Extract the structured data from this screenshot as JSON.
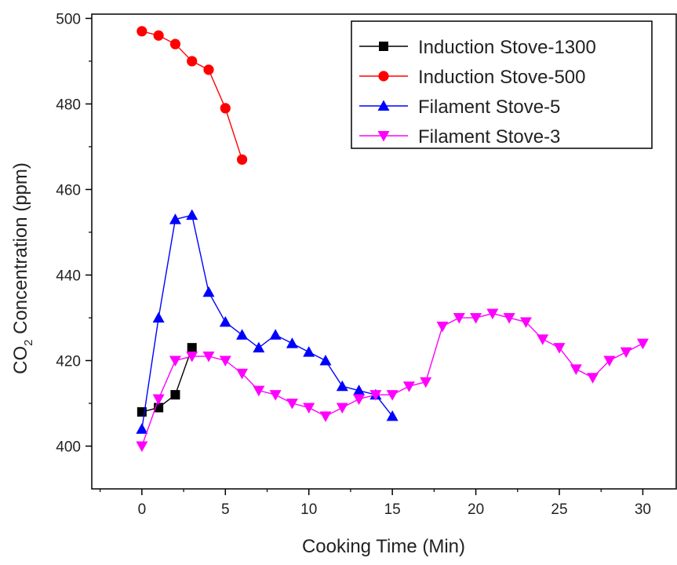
{
  "chart_data": {
    "type": "line",
    "xlabel": "Cooking Time (Min)",
    "ylabel_main": "CO",
    "ylabel_sub": "2",
    "ylabel_rest": " Concentration (ppm)",
    "xlim": [
      -3,
      32
    ],
    "ylim": [
      390,
      501
    ],
    "xticks": [
      0,
      5,
      10,
      15,
      20,
      25,
      30
    ],
    "yticks": [
      400,
      420,
      440,
      460,
      480,
      500
    ],
    "grid": false,
    "legend_position": "top-right",
    "series": [
      {
        "name": "Induction Stove-1300",
        "color": "#000000",
        "marker": "square",
        "x": [
          0,
          1,
          2,
          3
        ],
        "y": [
          408,
          409,
          412,
          423
        ]
      },
      {
        "name": "Induction Stove-500",
        "color": "#ff0000",
        "marker": "circle",
        "x": [
          0,
          1,
          2,
          3,
          4,
          5,
          6
        ],
        "y": [
          497,
          496,
          494,
          490,
          488,
          479,
          467
        ]
      },
      {
        "name": "Filament Stove-5",
        "color": "#0000ff",
        "marker": "triangle-up",
        "x": [
          0,
          1,
          2,
          3,
          4,
          5,
          6,
          7,
          8,
          9,
          10,
          11,
          12,
          13,
          14,
          15
        ],
        "y": [
          404,
          430,
          453,
          454,
          436,
          429,
          426,
          423,
          426,
          424,
          422,
          420,
          414,
          413,
          412,
          407
        ]
      },
      {
        "name": "Filament Stove-3",
        "color": "#ff00ff",
        "marker": "triangle-down",
        "x": [
          0,
          1,
          2,
          3,
          4,
          5,
          6,
          7,
          8,
          9,
          10,
          11,
          12,
          13,
          14,
          15,
          16,
          17,
          18,
          19,
          20,
          21,
          22,
          23,
          24,
          25,
          26,
          27,
          28,
          29,
          30
        ],
        "y": [
          400,
          411,
          420,
          421,
          421,
          420,
          417,
          413,
          412,
          410,
          409,
          407,
          409,
          411,
          412,
          412,
          414,
          415,
          428,
          430,
          430,
          431,
          430,
          429,
          425,
          423,
          418,
          416,
          420,
          422,
          424
        ]
      }
    ]
  }
}
